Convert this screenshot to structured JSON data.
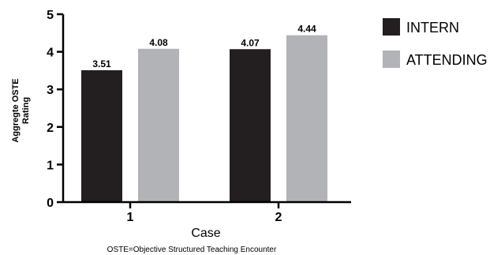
{
  "chart_data": {
    "type": "bar",
    "categories": [
      "1",
      "2"
    ],
    "series": [
      {
        "name": "INTERN",
        "values": [
          3.51,
          4.07
        ],
        "color": "#231f20"
      },
      {
        "name": "ATTENDING",
        "values": [
          4.08,
          4.44
        ],
        "color": "#b1b3b6"
      }
    ],
    "data_labels": [
      [
        "3.51",
        "4.07"
      ],
      [
        "4.08",
        "4.44"
      ]
    ],
    "title": "",
    "xlabel": "Case",
    "ylabel_lines": [
      "Aggregte OSTE",
      "Rating"
    ],
    "ylim": [
      0,
      5
    ],
    "yticks": [
      "0",
      "1",
      "2",
      "3",
      "4",
      "5"
    ],
    "grid": false,
    "legend_placement": "top-right"
  },
  "footnote": "OSTE=Objective Structured Teaching Encounter"
}
